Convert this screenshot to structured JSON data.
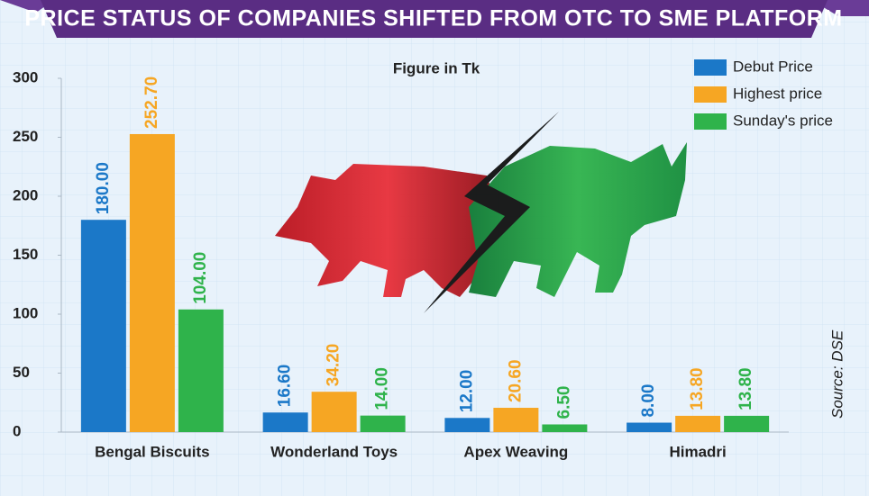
{
  "chart_data": {
    "type": "bar",
    "title": "PRICE STATUS OF COMPANIES SHIFTED FROM OTC TO SME PLATFORM",
    "subtitle": "Figure in Tk",
    "source": "Source: DSE",
    "categories": [
      "Bengal Biscuits",
      "Wonderland Toys",
      "Apex Weaving",
      "Himadri"
    ],
    "series": [
      {
        "name": "Debut Price",
        "color": "#1b78c8",
        "values": [
          180,
          16.6,
          12,
          8
        ],
        "value_labels": [
          "180.00",
          "16.60",
          "12.00",
          "8.00"
        ]
      },
      {
        "name": "Highest price",
        "color": "#f6a623",
        "values": [
          252.7,
          34.2,
          20.6,
          13.8
        ],
        "value_labels": [
          "252.70",
          "34.20",
          "20.60",
          "13.80"
        ]
      },
      {
        "name": "Sunday's price",
        "color": "#2fb34b",
        "values": [
          104,
          14,
          6.5,
          13.8
        ],
        "value_labels": [
          "104.00",
          "14.00",
          "6.50",
          "13.80"
        ]
      }
    ],
    "ylim": [
      0,
      300
    ],
    "yticks": [
      0,
      50,
      100,
      150,
      200,
      250,
      300
    ]
  }
}
